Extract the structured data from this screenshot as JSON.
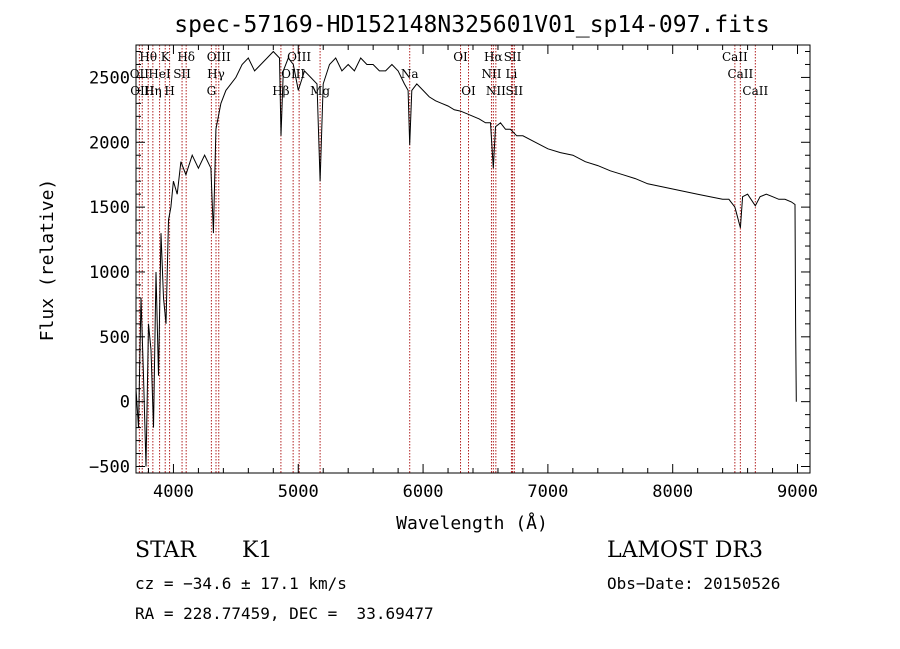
{
  "chart_data": {
    "type": "line",
    "title": "spec-57169-HD152148N325601V01_sp14-097.fits",
    "xlabel": "Wavelength (Å)",
    "ylabel": "Flux (relative)",
    "xlim": [
      3700,
      9100
    ],
    "ylim": [
      -550,
      2750
    ],
    "xticks": [
      4000,
      5000,
      6000,
      7000,
      8000,
      9000
    ],
    "yticks": [
      -500,
      0,
      500,
      1000,
      1500,
      2000,
      2500
    ],
    "grid": false,
    "series": [
      {
        "name": "spectrum",
        "x": [
          3700,
          3720,
          3740,
          3760,
          3780,
          3800,
          3820,
          3840,
          3860,
          3880,
          3900,
          3920,
          3940,
          3960,
          3980,
          4000,
          4030,
          4060,
          4100,
          4150,
          4200,
          4250,
          4300,
          4320,
          4340,
          4380,
          4420,
          4460,
          4500,
          4550,
          4600,
          4650,
          4700,
          4750,
          4800,
          4850,
          4862,
          4880,
          4920,
          4960,
          5000,
          5050,
          5100,
          5150,
          5175,
          5200,
          5250,
          5300,
          5350,
          5400,
          5450,
          5500,
          5550,
          5600,
          5650,
          5700,
          5750,
          5800,
          5850,
          5880,
          5893,
          5910,
          5950,
          6000,
          6050,
          6100,
          6150,
          6200,
          6250,
          6300,
          6350,
          6400,
          6450,
          6500,
          6540,
          6563,
          6580,
          6620,
          6660,
          6700,
          6750,
          6800,
          6900,
          7000,
          7100,
          7200,
          7300,
          7400,
          7500,
          7600,
          7700,
          7800,
          7900,
          8000,
          8100,
          8200,
          8300,
          8400,
          8450,
          8498,
          8542,
          8560,
          8600,
          8662,
          8700,
          8750,
          8800,
          8850,
          8900,
          8950,
          8980,
          8985,
          8990
        ],
        "values": [
          100,
          -200,
          800,
          200,
          -500,
          600,
          400,
          -200,
          1000,
          200,
          1300,
          800,
          600,
          1400,
          1500,
          1700,
          1600,
          1850,
          1750,
          1900,
          1800,
          1900,
          1800,
          1300,
          2100,
          2300,
          2400,
          2450,
          2500,
          2600,
          2650,
          2550,
          2600,
          2650,
          2700,
          2650,
          2050,
          2550,
          2650,
          2600,
          2400,
          2550,
          2500,
          2450,
          1700,
          2450,
          2600,
          2650,
          2550,
          2600,
          2550,
          2650,
          2600,
          2600,
          2550,
          2550,
          2600,
          2550,
          2450,
          2400,
          1980,
          2400,
          2450,
          2400,
          2350,
          2320,
          2300,
          2280,
          2250,
          2240,
          2220,
          2200,
          2180,
          2150,
          2150,
          1800,
          2120,
          2150,
          2100,
          2100,
          2050,
          2050,
          2000,
          1950,
          1920,
          1900,
          1850,
          1820,
          1780,
          1750,
          1720,
          1680,
          1660,
          1640,
          1620,
          1600,
          1580,
          1560,
          1560,
          1500,
          1340,
          1580,
          1600,
          1510,
          1580,
          1600,
          1580,
          1560,
          1560,
          1540,
          1520,
          600,
          0
        ]
      }
    ],
    "line_markers": [
      {
        "label": "Hθ",
        "x": 3798,
        "row": 0
      },
      {
        "label": "K",
        "x": 3934,
        "row": 0
      },
      {
        "label": "Hδ",
        "x": 4102,
        "row": 0
      },
      {
        "label": "OII",
        "x": 3727,
        "row": 1
      },
      {
        "label": "HeI",
        "x": 3889,
        "row": 1
      },
      {
        "label": "SII",
        "x": 4069,
        "row": 1
      },
      {
        "label": "OIII",
        "x": 3750,
        "row": 2
      },
      {
        "label": "Hη",
        "x": 3835,
        "row": 2
      },
      {
        "label": "H",
        "x": 3969,
        "row": 2
      },
      {
        "label": "OIII",
        "x": 4363,
        "row": 0
      },
      {
        "label": "Hγ",
        "x": 4341,
        "row": 1
      },
      {
        "label": "G",
        "x": 4304,
        "row": 2
      },
      {
        "label": "OIII",
        "x": 5007,
        "row": 0
      },
      {
        "label": "OIII",
        "x": 4959,
        "row": 1
      },
      {
        "label": "Hβ",
        "x": 4861,
        "row": 2
      },
      {
        "label": "Mg",
        "x": 5175,
        "row": 2
      },
      {
        "label": "Na",
        "x": 5893,
        "row": 1
      },
      {
        "label": "OI",
        "x": 6300,
        "row": 0
      },
      {
        "label": "OI",
        "x": 6364,
        "row": 2
      },
      {
        "label": "Hα",
        "x": 6563,
        "row": 0
      },
      {
        "label": "SII",
        "x": 6717,
        "row": 0
      },
      {
        "label": "NII",
        "x": 6548,
        "row": 1
      },
      {
        "label": "Li",
        "x": 6708,
        "row": 1
      },
      {
        "label": "NII",
        "x": 6583,
        "row": 2
      },
      {
        "label": "SII",
        "x": 6731,
        "row": 2
      },
      {
        "label": "CaII",
        "x": 8498,
        "row": 0
      },
      {
        "label": "CaII",
        "x": 8542,
        "row": 1
      },
      {
        "label": "CaII",
        "x": 8662,
        "row": 2
      }
    ],
    "marker_color": "#b22222"
  },
  "info": {
    "object_class": "STAR",
    "subclass": "K1",
    "survey": "LAMOST DR3",
    "cz": "cz = −34.6 ± 17.1 km/s",
    "obs_date": "Obs−Date: 20150526",
    "coords": "RA = 228.77459, DEC =  33.69477"
  }
}
